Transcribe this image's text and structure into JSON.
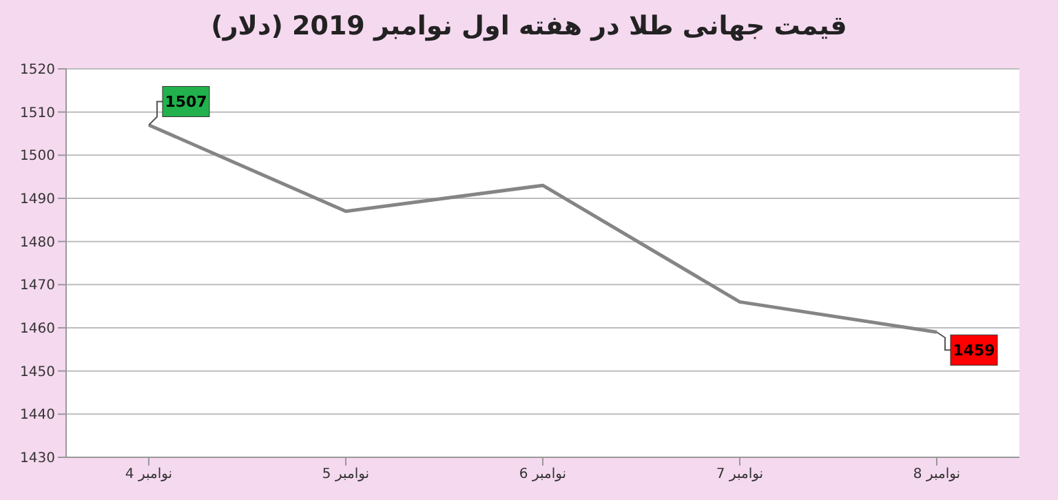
{
  "chart_data": {
    "type": "line",
    "title": "قیمت جهانی طلا در هفته اول نوامبر 2019 (دلار)",
    "categories": [
      "4 نوامبر",
      "5 نوامبر",
      "6 نوامبر",
      "7 نوامبر",
      "8 نوامبر"
    ],
    "values": [
      1507,
      1487,
      1493,
      1466,
      1459
    ],
    "value_labels": [
      "1507",
      null,
      null,
      null,
      "1459"
    ],
    "color": "#858585",
    "ylim": [
      1430,
      1520
    ],
    "yticks": [
      1430,
      1440,
      1450,
      1460,
      1470,
      1480,
      1490,
      1500,
      1510,
      1520
    ],
    "grid": "y",
    "marker": "none",
    "line_style": "solid",
    "legend": false
  }
}
